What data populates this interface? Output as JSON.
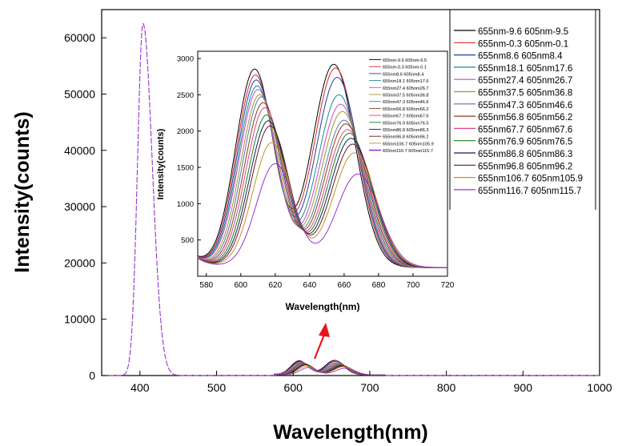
{
  "chart_data": [
    {
      "type": "line",
      "xlabel": "Wavelength(nm)",
      "ylabel": "Intensity(counts)",
      "xlim": [
        350,
        1000
      ],
      "ylim": [
        0,
        65000
      ],
      "x_ticks": [
        400,
        500,
        600,
        700,
        800,
        900,
        1000
      ],
      "y_ticks": [
        0,
        10000,
        20000,
        30000,
        40000,
        50000,
        60000
      ],
      "excitation_peak": {
        "x": 404,
        "y": 62500,
        "width_nm": 12,
        "color": "#9933cc"
      },
      "annotation": {
        "type": "arrow",
        "color": "#e8141c",
        "points_toward": "inset"
      },
      "legend": {
        "placement": "top-right",
        "entries": [
          "655nm-9.6  605nm-9.5",
          "655nm-0.3  605nm-0.1",
          "655nm8.6  605nm8.4",
          "655nm18.1  605nm17.6",
          "655nm27.4  605nm26.7",
          "655nm37.5  605nm36.8",
          "655nm47.3  605nm46.6",
          "655nm56.8  605nm56.2",
          "655nm67.7  605nm67.6",
          "655nm76.9  605nm76.5",
          "655nm86.8  605nm86.3",
          "655nm96.8  605nm96.2",
          "655nm106.7  605nm105.9",
          "655nm116.7  605nm115.7"
        ]
      }
    },
    {
      "type": "line",
      "role": "inset",
      "xlabel": "Wavelength(nm)",
      "ylabel": "Intensity(counts)",
      "xlim": [
        575,
        720
      ],
      "ylim": [
        0,
        3100
      ],
      "x_ticks": [
        580,
        600,
        620,
        640,
        660,
        680,
        700,
        720
      ],
      "y_ticks": [
        500,
        1000,
        1500,
        2000,
        2500,
        3000
      ],
      "legend": {
        "placement": "top-right"
      },
      "series": [
        {
          "name": "655nm-9.6  605nm-9.5",
          "color": "#000000",
          "peak1": [
            608,
            2730
          ],
          "peak2": [
            654,
            2800
          ]
        },
        {
          "name": "655nm-0.3  605nm-0.1",
          "color": "#d62728",
          "peak1": [
            608.5,
            2650
          ],
          "peak2": [
            655,
            2750
          ]
        },
        {
          "name": "655nm8.6  605nm8.4",
          "color": "#1f3f9f",
          "peak1": [
            609,
            2580
          ],
          "peak2": [
            656,
            2620
          ]
        },
        {
          "name": "655nm18.1  605nm17.6",
          "color": "#1b8a8a",
          "peak1": [
            609.5,
            2500
          ],
          "peak2": [
            657,
            2380
          ]
        },
        {
          "name": "655nm27.4  605nm26.7",
          "color": "#cc44cc",
          "peak1": [
            610,
            2450
          ],
          "peak2": [
            658,
            2250
          ]
        },
        {
          "name": "655nm37.5  605nm36.8",
          "color": "#9a9a2a",
          "peak1": [
            611,
            2380
          ],
          "peak2": [
            659,
            2150
          ]
        },
        {
          "name": "655nm47.3  605nm46.6",
          "color": "#5577aa",
          "peak1": [
            612,
            2350
          ],
          "peak2": [
            660,
            2030
          ]
        },
        {
          "name": "655nm56.8  605nm56.2",
          "color": "#8b3a1a",
          "peak1": [
            613,
            2270
          ],
          "peak2": [
            661,
            1980
          ]
        },
        {
          "name": "655nm67.7  605nm67.6",
          "color": "#e0418a",
          "peak1": [
            614,
            2200
          ],
          "peak2": [
            662,
            1900
          ]
        },
        {
          "name": "655nm76.9  605nm76.5",
          "color": "#1e7d1e",
          "peak1": [
            615,
            2100
          ],
          "peak2": [
            663,
            1850
          ]
        },
        {
          "name": "655nm86.8  605nm86.3",
          "color": "#0d1f5c",
          "peak1": [
            616,
            2020
          ],
          "peak2": [
            664,
            1780
          ]
        },
        {
          "name": "655nm96.8  605nm96.2",
          "color": "#6b1a1a",
          "peak1": [
            617,
            1950
          ],
          "peak2": [
            665,
            1700
          ]
        },
        {
          "name": "655nm106.7  605nm105.9",
          "color": "#c0922a",
          "peak1": [
            618,
            1720
          ],
          "peak2": [
            666,
            1580
          ]
        },
        {
          "name": "655nm116.7  605nm115.7",
          "color": "#9933cc",
          "peak1": [
            620,
            1430
          ],
          "peak2": [
            668,
            1290
          ]
        }
      ]
    }
  ]
}
